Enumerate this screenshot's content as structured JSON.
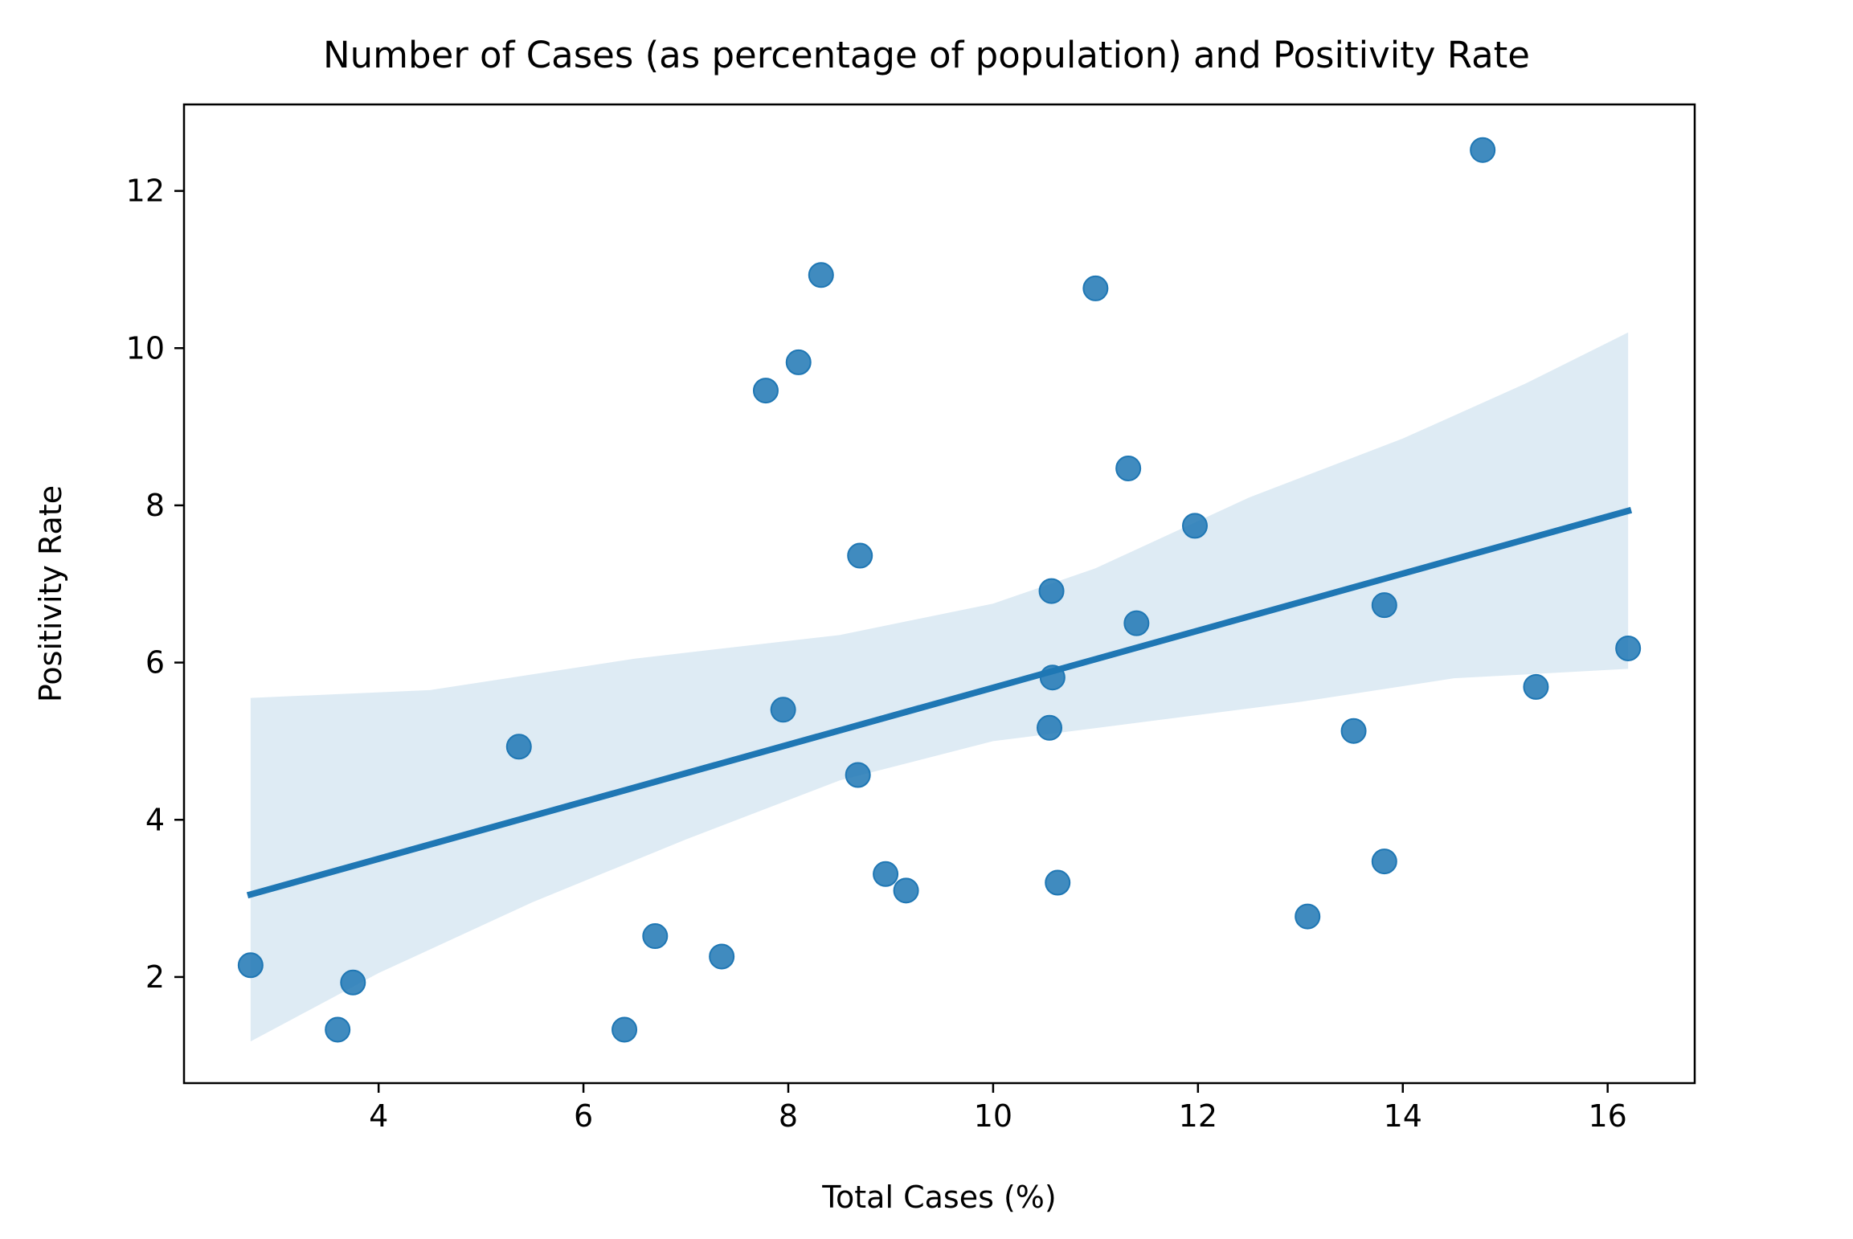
{
  "chart_data": {
    "type": "scatter",
    "title": "Number of Cases (as percentage of population) and Positivity Rate",
    "xlabel": "Total Cases (%)",
    "ylabel": "Positivity Rate",
    "xlim": [
      2.1,
      16.85
    ],
    "ylim": [
      0.65,
      13.1
    ],
    "xticks": [
      4,
      6,
      8,
      10,
      12,
      14,
      16
    ],
    "yticks": [
      2,
      4,
      6,
      8,
      10,
      12
    ],
    "grid": false,
    "colors": {
      "points": "#1f77b4",
      "line": "#1f77b4",
      "band": "#1f77b4"
    },
    "points": [
      {
        "x": 2.75,
        "y": 2.15
      },
      {
        "x": 3.6,
        "y": 1.33
      },
      {
        "x": 3.75,
        "y": 1.93
      },
      {
        "x": 5.37,
        "y": 4.93
      },
      {
        "x": 6.4,
        "y": 1.33
      },
      {
        "x": 6.7,
        "y": 2.52
      },
      {
        "x": 7.35,
        "y": 2.26
      },
      {
        "x": 7.78,
        "y": 9.46
      },
      {
        "x": 7.95,
        "y": 5.4
      },
      {
        "x": 8.1,
        "y": 9.82
      },
      {
        "x": 8.32,
        "y": 10.93
      },
      {
        "x": 8.68,
        "y": 4.57
      },
      {
        "x": 8.7,
        "y": 7.36
      },
      {
        "x": 8.95,
        "y": 3.31
      },
      {
        "x": 9.15,
        "y": 3.1
      },
      {
        "x": 10.55,
        "y": 5.17
      },
      {
        "x": 10.57,
        "y": 6.91
      },
      {
        "x": 10.58,
        "y": 5.81
      },
      {
        "x": 10.63,
        "y": 3.2
      },
      {
        "x": 11.0,
        "y": 10.76
      },
      {
        "x": 11.32,
        "y": 8.47
      },
      {
        "x": 11.4,
        "y": 6.5
      },
      {
        "x": 11.97,
        "y": 7.74
      },
      {
        "x": 13.07,
        "y": 2.77
      },
      {
        "x": 13.52,
        "y": 5.13
      },
      {
        "x": 13.82,
        "y": 6.73
      },
      {
        "x": 13.82,
        "y": 3.47
      },
      {
        "x": 14.78,
        "y": 12.52
      },
      {
        "x": 15.3,
        "y": 5.69
      },
      {
        "x": 16.2,
        "y": 6.18
      }
    ],
    "regression": {
      "line": [
        {
          "x": 2.75,
          "y": 3.05
        },
        {
          "x": 16.2,
          "y": 7.93
        }
      ],
      "ci_upper": [
        {
          "x": 2.75,
          "y": 5.55
        },
        {
          "x": 4.5,
          "y": 5.65
        },
        {
          "x": 6.5,
          "y": 6.05
        },
        {
          "x": 8.5,
          "y": 6.35
        },
        {
          "x": 10.0,
          "y": 6.75
        },
        {
          "x": 11.0,
          "y": 7.2
        },
        {
          "x": 12.5,
          "y": 8.1
        },
        {
          "x": 14.0,
          "y": 8.85
        },
        {
          "x": 15.2,
          "y": 9.55
        },
        {
          "x": 16.2,
          "y": 10.2
        }
      ],
      "ci_lower": [
        {
          "x": 2.75,
          "y": 1.18
        },
        {
          "x": 4.0,
          "y": 2.05
        },
        {
          "x": 5.5,
          "y": 2.95
        },
        {
          "x": 7.0,
          "y": 3.75
        },
        {
          "x": 8.5,
          "y": 4.5
        },
        {
          "x": 10.0,
          "y": 5.0
        },
        {
          "x": 11.5,
          "y": 5.25
        },
        {
          "x": 13.0,
          "y": 5.5
        },
        {
          "x": 14.5,
          "y": 5.8
        },
        {
          "x": 16.2,
          "y": 5.92
        }
      ]
    }
  }
}
